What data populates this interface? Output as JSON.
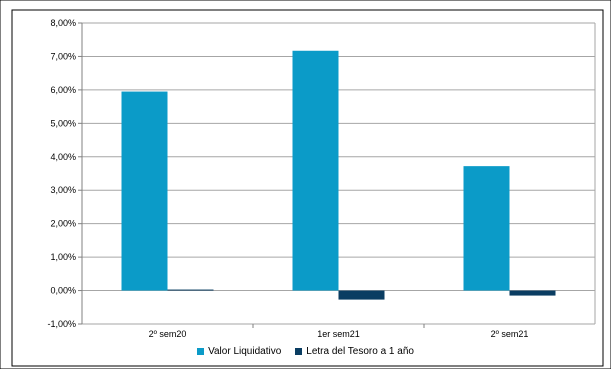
{
  "chart_data": {
    "type": "bar",
    "categories": [
      "2º sem20",
      "1er sem21",
      "2º sem21"
    ],
    "series": [
      {
        "name": "Valor Liquidativo",
        "values": [
          5.95,
          7.17,
          3.72
        ],
        "color": "#0B9BC8"
      },
      {
        "name": "Letra del Tesoro a 1 año",
        "values": [
          0.03,
          -0.27,
          -0.15
        ],
        "color": "#0A3D62"
      }
    ],
    "ylim": [
      -1,
      8
    ],
    "yticks": [
      "8,00%",
      "7,00%",
      "6,00%",
      "5,00%",
      "4,00%",
      "3,00%",
      "2,00%",
      "1,00%",
      "0,00%",
      "-1,00%"
    ],
    "ytick_values": [
      8,
      7,
      6,
      5,
      4,
      3,
      2,
      1,
      0,
      -1
    ],
    "grid": true,
    "legend_position": "bottom"
  }
}
